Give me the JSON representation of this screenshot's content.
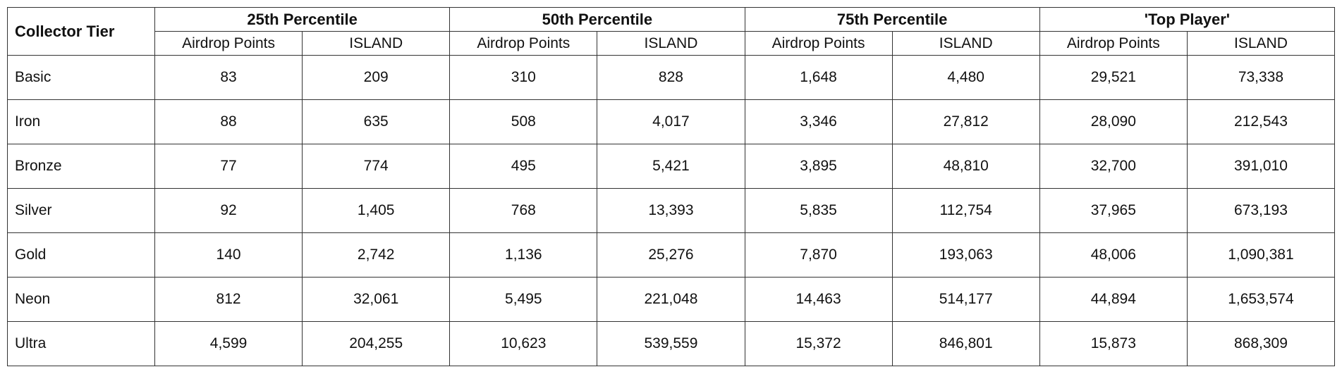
{
  "table": {
    "corner": "Collector Tier",
    "groups": [
      "25th Percentile",
      "50th Percentile",
      "75th Percentile",
      "'Top Player'"
    ],
    "subheaders": [
      [
        "Airdrop Points",
        "ISLAND"
      ],
      [
        "Airdrop Points",
        "ISLAND"
      ],
      [
        "Airdrop Points",
        "ISLAND"
      ],
      [
        "Airdrop Points",
        "ISLAND"
      ]
    ],
    "rows": [
      [
        "Basic",
        "83",
        "209",
        "310",
        "828",
        "1,648",
        "4,480",
        "29,521",
        "73,338"
      ],
      [
        "Iron",
        "88",
        "635",
        "508",
        "4,017",
        "3,346",
        "27,812",
        "28,090",
        "212,543"
      ],
      [
        "Bronze",
        "77",
        "774",
        "495",
        "5,421",
        "3,895",
        "48,810",
        "32,700",
        "391,010"
      ],
      [
        "Silver",
        "92",
        "1,405",
        "768",
        "13,393",
        "5,835",
        "112,754",
        "37,965",
        "673,193"
      ],
      [
        "Gold",
        "140",
        "2,742",
        "1,136",
        "25,276",
        "7,870",
        "193,063",
        "48,006",
        "1,090,381"
      ],
      [
        "Neon",
        "812",
        "32,061",
        "5,495",
        "221,048",
        "14,463",
        "514,177",
        "44,894",
        "1,653,574"
      ],
      [
        "Ultra",
        "4,599",
        "204,255",
        "10,623",
        "539,559",
        "15,372",
        "846,801",
        "15,873",
        "868,309"
      ]
    ]
  }
}
